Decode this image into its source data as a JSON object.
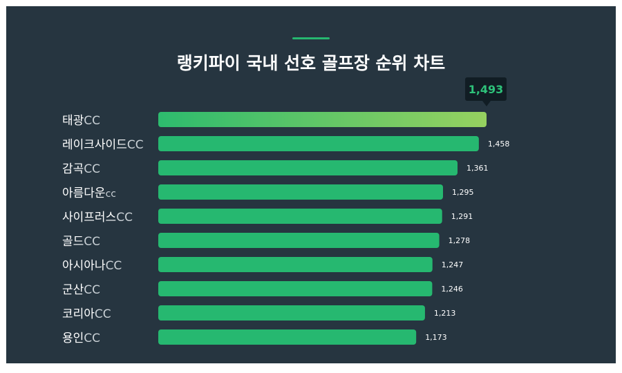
{
  "chart_data": {
    "type": "bar",
    "orientation": "horizontal",
    "title": "랭키파이 국내 선호 골프장 순위 차트",
    "categories": [
      {
        "name": "태광",
        "suffix": "CC"
      },
      {
        "name": "레이크사이드",
        "suffix": "CC"
      },
      {
        "name": "감곡",
        "suffix": "CC"
      },
      {
        "name": "아름다운",
        "suffix": "cc"
      },
      {
        "name": "사이프러스",
        "suffix": "CC"
      },
      {
        "name": "골드",
        "suffix": "CC"
      },
      {
        "name": "아시아나",
        "suffix": "CC"
      },
      {
        "name": "군산",
        "suffix": "CC"
      },
      {
        "name": "코리아",
        "suffix": "CC"
      },
      {
        "name": "용인",
        "suffix": "CC"
      }
    ],
    "values": [
      1493,
      1458,
      1361,
      1295,
      1291,
      1278,
      1247,
      1246,
      1213,
      1173
    ],
    "value_labels": [
      "1,493",
      "1,458",
      "1,361",
      "1,295",
      "1,291",
      "1,278",
      "1,247",
      "1,246",
      "1,213",
      "1,173"
    ],
    "xlim": [
      0,
      1493
    ],
    "highlight_index": 0,
    "grid": false,
    "legend": "none"
  },
  "colors": {
    "background": "#263540",
    "bar": "#26b870",
    "top_bar_start": "#2dbb6e",
    "top_bar_end": "#96d160",
    "tooltip_bg": "#111d24",
    "tooltip_text": "#2ec27a"
  }
}
